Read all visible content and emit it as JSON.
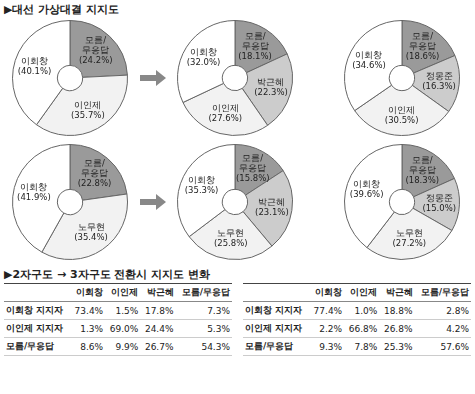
{
  "title": "▶대선 가상대결 지지도",
  "chart_data": [
    {
      "type": "doughnut",
      "categories": [
        "모름/무응답",
        "이인제",
        "이회창"
      ],
      "values": [
        24.2,
        35.7,
        40.1
      ],
      "value_labels": [
        "(24.2%)",
        "(35.7%)",
        "(40.1%)"
      ],
      "colors": [
        "#9a9a9a",
        "#f2f2f2",
        "#ffffff"
      ],
      "data_labels": true
    },
    {
      "type": "doughnut",
      "categories": [
        "모름/무응답",
        "박근혜",
        "이인제",
        "이회창"
      ],
      "values": [
        18.1,
        22.3,
        27.6,
        32.0
      ],
      "value_labels": [
        "(18.1%)",
        "(22.3%)",
        "(27.6%)",
        "(32.0%)"
      ],
      "colors": [
        "#9a9a9a",
        "#cccccc",
        "#f2f2f2",
        "#ffffff"
      ],
      "data_labels": true
    },
    {
      "type": "doughnut",
      "categories": [
        "모름/무응답",
        "정몽준",
        "이인제",
        "이회창"
      ],
      "values": [
        18.6,
        16.3,
        30.5,
        34.6
      ],
      "value_labels": [
        "(18.6%)",
        "(16.3%)",
        "(30.5%)",
        "(34.6%)"
      ],
      "colors": [
        "#9a9a9a",
        "#cccccc",
        "#f2f2f2",
        "#ffffff"
      ],
      "data_labels": true
    },
    {
      "type": "doughnut",
      "categories": [
        "모름/무응답",
        "노무현",
        "이회창"
      ],
      "values": [
        22.8,
        35.4,
        41.9
      ],
      "value_labels": [
        "(22.8%)",
        "(35.4%)",
        "(41.9%)"
      ],
      "colors": [
        "#9a9a9a",
        "#f2f2f2",
        "#ffffff"
      ],
      "data_labels": true
    },
    {
      "type": "doughnut",
      "categories": [
        "모름/무응답",
        "박근혜",
        "노무현",
        "이회창"
      ],
      "values": [
        15.8,
        23.1,
        25.8,
        35.3
      ],
      "value_labels": [
        "(15.8%)",
        "(23.1%)",
        "(25.8%)",
        "(35.3%)"
      ],
      "colors": [
        "#9a9a9a",
        "#cccccc",
        "#f2f2f2",
        "#ffffff"
      ],
      "data_labels": true
    },
    {
      "type": "doughnut",
      "categories": [
        "모름/무응답",
        "정몽준",
        "노무현",
        "이회창"
      ],
      "values": [
        18.3,
        15.0,
        27.2,
        39.6
      ],
      "value_labels": [
        "(18.3%)",
        "(15.0%)",
        "(27.2%)",
        "(39.6%)"
      ],
      "colors": [
        "#9a9a9a",
        "#cccccc",
        "#f2f2f2",
        "#ffffff"
      ],
      "data_labels": true
    }
  ],
  "table_title": "▶2자구도 → 3자구도 전환시 지지도 변화",
  "tables": [
    {
      "header": [
        "이회창",
        "이인제",
        "박근혜",
        "모름/무응답"
      ],
      "rows": [
        {
          "label": "이회창 지지자",
          "cells": [
            "73.4%",
            "1.5%",
            "17.8%",
            "7.3%"
          ]
        },
        {
          "label": "이인제 지지자",
          "cells": [
            "1.3%",
            "69.0%",
            "24.4%",
            "5.3%"
          ]
        },
        {
          "label": "모름/무응답",
          "cells": [
            "8.6%",
            "9.9%",
            "26.7%",
            "54.3%"
          ]
        }
      ]
    },
    {
      "header": [
        "이회창",
        "이인제",
        "박근혜",
        "모름/무응답"
      ],
      "rows": [
        {
          "label": "이회창 지지자",
          "cells": [
            "77.4%",
            "1.0%",
            "18.8%",
            "2.8%"
          ]
        },
        {
          "label": "이인제 지지자",
          "cells": [
            "2.2%",
            "66.8%",
            "26.8%",
            "4.2%"
          ]
        },
        {
          "label": "모름/무응답",
          "cells": [
            "9.3%",
            "7.8%",
            "25.3%",
            "57.6%"
          ]
        }
      ]
    }
  ]
}
